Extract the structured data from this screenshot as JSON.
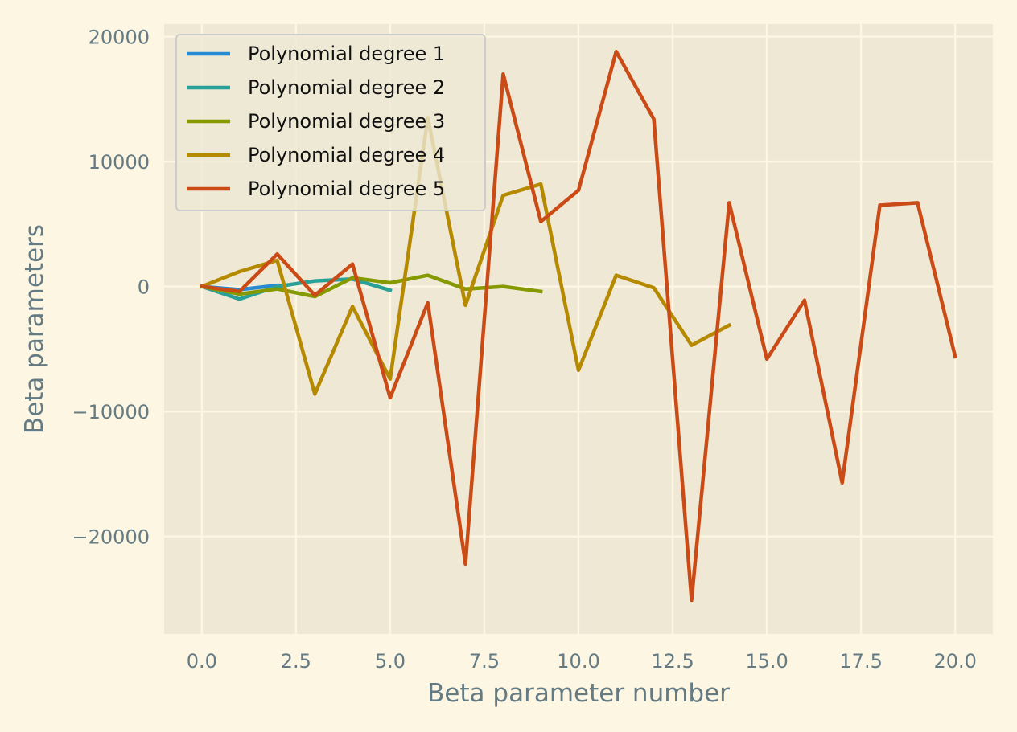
{
  "chart_data": {
    "type": "line",
    "title": "",
    "xlabel": "Beta parameter number",
    "ylabel": "Beta parameters",
    "xlim": [
      -1,
      21
    ],
    "ylim": [
      -27800,
      21000
    ],
    "xticks": [
      0,
      2.5,
      5,
      7.5,
      10,
      12.5,
      15,
      17.5,
      20
    ],
    "xtick_labels": [
      "0.0",
      "2.5",
      "5.0",
      "7.5",
      "10.0",
      "12.5",
      "15.0",
      "17.5",
      "20.0"
    ],
    "yticks": [
      -20000,
      -10000,
      0,
      10000,
      20000
    ],
    "ytick_labels": [
      "−20000",
      "−10000",
      "0",
      "10000",
      "20000"
    ],
    "grid": true,
    "legend_position": "top-left",
    "series": [
      {
        "name": "Polynomial degree 1",
        "color": "#268bd2",
        "x": [
          0,
          1,
          2
        ],
        "y": [
          0,
          -250,
          100
        ]
      },
      {
        "name": "Polynomial degree 2",
        "color": "#2aa198",
        "x": [
          0,
          1,
          2,
          3,
          4,
          5
        ],
        "y": [
          0,
          -1000,
          0,
          450,
          600,
          -300
        ]
      },
      {
        "name": "Polynomial degree 3",
        "color": "#859900",
        "x": [
          0,
          1,
          2,
          3,
          4,
          5,
          6,
          7,
          8,
          9
        ],
        "y": [
          0,
          -600,
          -200,
          -800,
          700,
          300,
          900,
          -200,
          0,
          -400
        ]
      },
      {
        "name": "Polynomial degree 4",
        "color": "#b58900",
        "x": [
          0,
          1,
          2,
          3,
          4,
          5,
          6,
          7,
          8,
          9,
          10,
          11,
          12,
          13,
          14
        ],
        "y": [
          0,
          1200,
          2100,
          -8600,
          -1600,
          -7400,
          13500,
          -1500,
          7300,
          8200,
          -6700,
          900,
          -100,
          -4700,
          -3100
        ]
      },
      {
        "name": "Polynomial degree 5",
        "color": "#cb4b16",
        "x": [
          0,
          1,
          2,
          3,
          4,
          5,
          6,
          7,
          8,
          9,
          10,
          11,
          12,
          13,
          14,
          15,
          16,
          17,
          18,
          19,
          20
        ],
        "y": [
          0,
          -400,
          2600,
          -700,
          1800,
          -8900,
          -1300,
          -22200,
          17000,
          5200,
          7700,
          18800,
          13400,
          -25100,
          6700,
          -5800,
          -1100,
          -15700,
          6500,
          6700,
          -5600
        ]
      }
    ]
  }
}
